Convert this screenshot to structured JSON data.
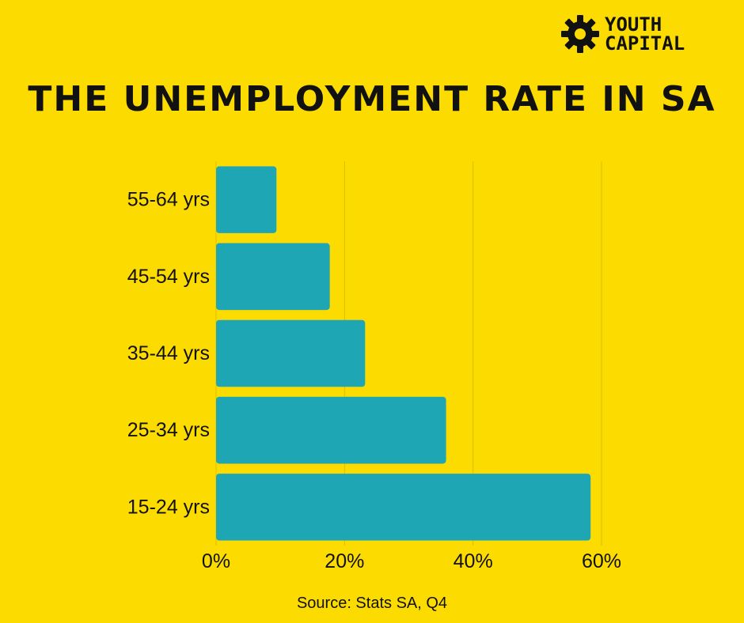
{
  "logo": {
    "line1": "YOUTH",
    "line2": "CAPITAL",
    "icon": "gear-icon"
  },
  "title": "THE UNEMPLOYMENT RATE IN SA",
  "source": "Source: Stats SA, Q4",
  "colors": {
    "background": "#FCDC00",
    "bar": "#1FA6B5",
    "text": "#111111",
    "grid": "#D8C000"
  },
  "chart_data": {
    "type": "bar",
    "orientation": "horizontal",
    "title": "THE UNEMPLOYMENT RATE IN SA",
    "categories": [
      "55-64 yrs",
      "45-54 yrs",
      "35-44 yrs",
      "25-34 yrs",
      "15-24 yrs"
    ],
    "values": [
      9.4,
      17.7,
      23.2,
      35.8,
      58.3
    ],
    "xlim": [
      0,
      60
    ],
    "xticks": [
      "0%",
      "20%",
      "40%",
      "60%"
    ],
    "xtick_values": [
      0,
      20,
      40,
      60
    ],
    "xlabel": "",
    "ylabel": "",
    "grid": "vertical",
    "legend": "none"
  }
}
